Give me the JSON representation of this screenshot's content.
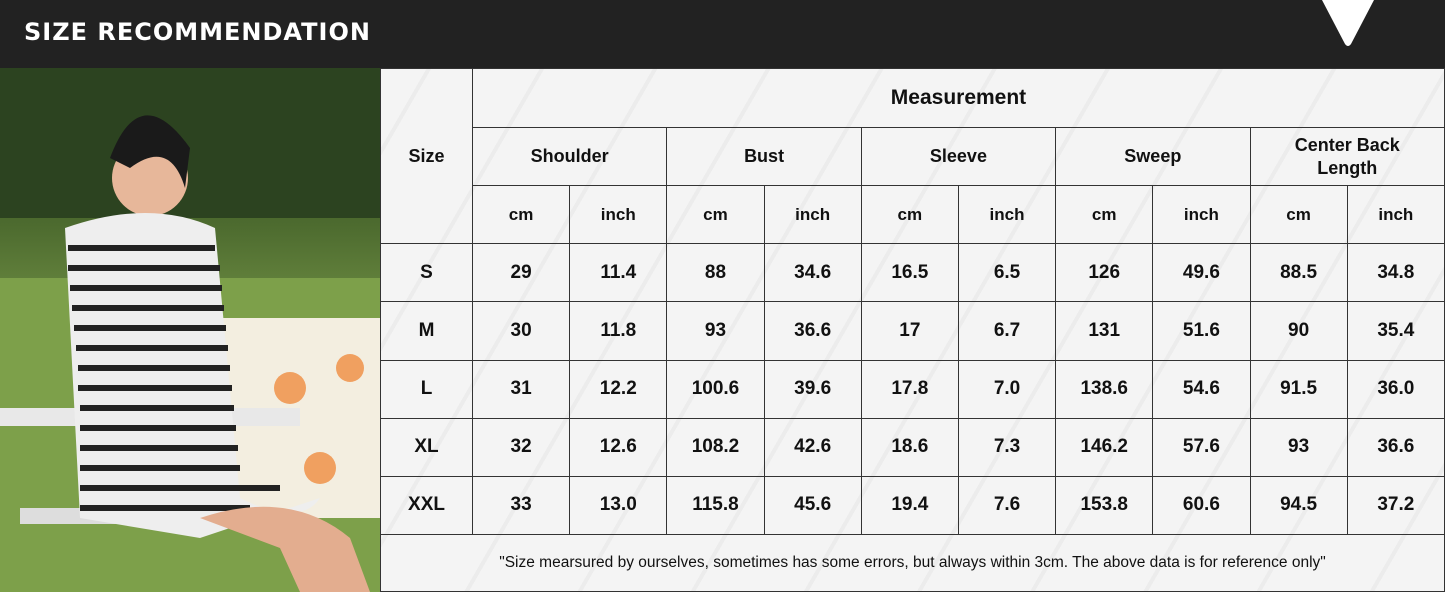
{
  "header": {
    "title": "SIZE RECOMMENDATION",
    "icon": "chevron-down-icon"
  },
  "table": {
    "size_header": "Size",
    "measurement_header": "Measurement",
    "groups": [
      "Shoulder",
      "Bust",
      "Sleeve",
      "Sweep",
      "Center Back Length"
    ],
    "units": [
      "cm",
      "inch"
    ],
    "rows": [
      {
        "size": "S",
        "values": [
          "29",
          "11.4",
          "88",
          "34.6",
          "16.5",
          "6.5",
          "126",
          "49.6",
          "88.5",
          "34.8"
        ]
      },
      {
        "size": "M",
        "values": [
          "30",
          "11.8",
          "93",
          "36.6",
          "17",
          "6.7",
          "131",
          "51.6",
          "90",
          "35.4"
        ]
      },
      {
        "size": "L",
        "values": [
          "31",
          "12.2",
          "100.6",
          "39.6",
          "17.8",
          "7.0",
          "138.6",
          "54.6",
          "91.5",
          "36.0"
        ]
      },
      {
        "size": "XL",
        "values": [
          "32",
          "12.6",
          "108.2",
          "42.6",
          "18.6",
          "7.3",
          "146.2",
          "57.6",
          "93",
          "36.6"
        ]
      },
      {
        "size": "XXL",
        "values": [
          "33",
          "13.0",
          "115.8",
          "45.6",
          "19.4",
          "7.6",
          "153.8",
          "60.6",
          "94.5",
          "37.2"
        ]
      }
    ],
    "footnote": "\"Size mearsured by ourselves, sometimes has some errors, but always within 3cm. The above data is for reference only\""
  }
}
